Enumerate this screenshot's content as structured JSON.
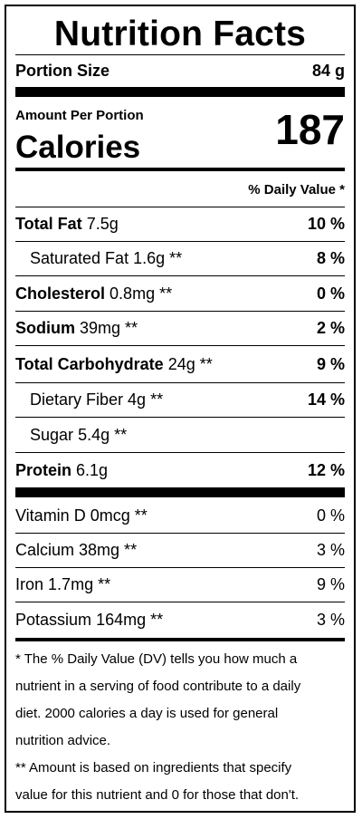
{
  "title": "Nutrition Facts",
  "portion": {
    "label": "Portion Size",
    "value": "84 g"
  },
  "amount_per_portion": "Amount Per Portion",
  "calories": {
    "label": "Calories",
    "value": "187"
  },
  "daily_value_header": "% Daily Value *",
  "nutrients": [
    {
      "name": "Total Fat",
      "amount": "7.5g",
      "dv": "10 %"
    },
    {
      "name": "Saturated Fat",
      "amount": "1.6g **",
      "dv": "8 %"
    },
    {
      "name": "Cholesterol",
      "amount": "0.8mg **",
      "dv": "0 %"
    },
    {
      "name": "Sodium",
      "amount": "39mg **",
      "dv": "2 %"
    },
    {
      "name": "Total Carbohydrate",
      "amount": "24g **",
      "dv": "9 %"
    },
    {
      "name": "Dietary Fiber",
      "amount": "4g **",
      "dv": "14 %"
    },
    {
      "name": "Sugar",
      "amount": "5.4g **",
      "dv": ""
    },
    {
      "name": "Protein",
      "amount": "6.1g",
      "dv": "12 %"
    }
  ],
  "vitamins": [
    {
      "name": "Vitamin D",
      "amount": "0mcg **",
      "dv": "0 %"
    },
    {
      "name": "Calcium",
      "amount": "38mg **",
      "dv": "3 %"
    },
    {
      "name": "Iron",
      "amount": "1.7mg **",
      "dv": "9 %"
    },
    {
      "name": "Potassium",
      "amount": "164mg **",
      "dv": "3 %"
    }
  ],
  "footnotes": {
    "dv_line1": "* The % Daily Value (DV) tells you how much a",
    "dv_line2": "nutrient in a serving of food contribute to a daily",
    "dv_line3": "diet. 2000 calories a day is used for general",
    "dv_line4": "nutrition advice.",
    "amount_line1": "** Amount is based on ingredients that specify",
    "amount_line2": "value for this nutrient and 0 for those that don't."
  }
}
